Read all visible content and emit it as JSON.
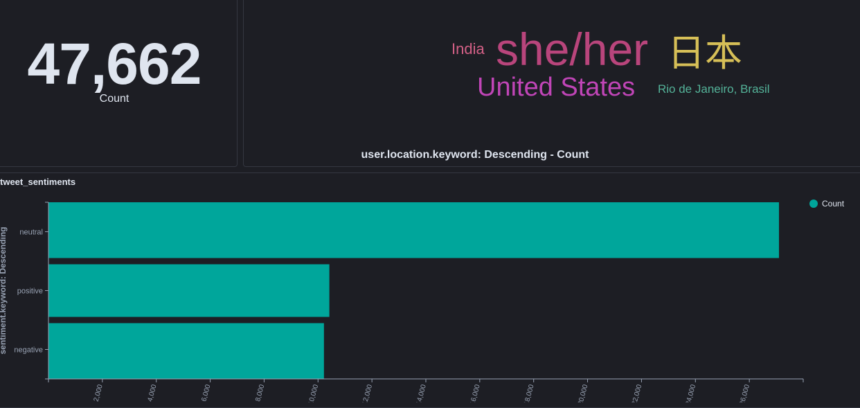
{
  "metric": {
    "value": "47,662",
    "label": "Count"
  },
  "word_cloud": {
    "words": [
      {
        "text": "India",
        "color": "#d36086"
      },
      {
        "text": "she/her",
        "color": "#b9457c"
      },
      {
        "text": "日本",
        "color": "#d6bf57"
      },
      {
        "text": "United States",
        "color": "#c045b7"
      },
      {
        "text": "Rio de Janeiro, Brasil",
        "color": "#54b399"
      }
    ],
    "caption": "user.location.keyword: Descending - Count"
  },
  "bar_chart": {
    "title": "tweet_sentiments",
    "color": "#00a69b"
  },
  "chart_data": {
    "type": "bar",
    "orientation": "horizontal",
    "title": "tweet_sentiments",
    "categories": [
      "neutral",
      "positive",
      "negative"
    ],
    "series": [
      {
        "name": "Count",
        "values": [
          27100,
          10420,
          10220
        ]
      }
    ],
    "ylabel": "sentiment.keyword: Descending",
    "xlabel": "",
    "xlim": [
      0,
      28000
    ],
    "x_tick_labels": [
      "2,000",
      "4,000",
      "6,000",
      "8,000",
      "10,000",
      "12,000",
      "14,000",
      "16,000",
      "18,000",
      "20,000",
      "22,000",
      "24,000",
      "26,000"
    ],
    "legend": "top-right",
    "grid": false
  }
}
